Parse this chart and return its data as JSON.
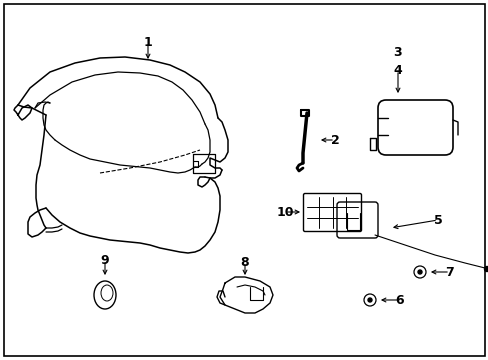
{
  "background_color": "#ffffff",
  "border_color": "#000000",
  "fig_width": 4.89,
  "fig_height": 3.6,
  "dpi": 100,
  "line_color": "#000000",
  "line_width": 1.0
}
